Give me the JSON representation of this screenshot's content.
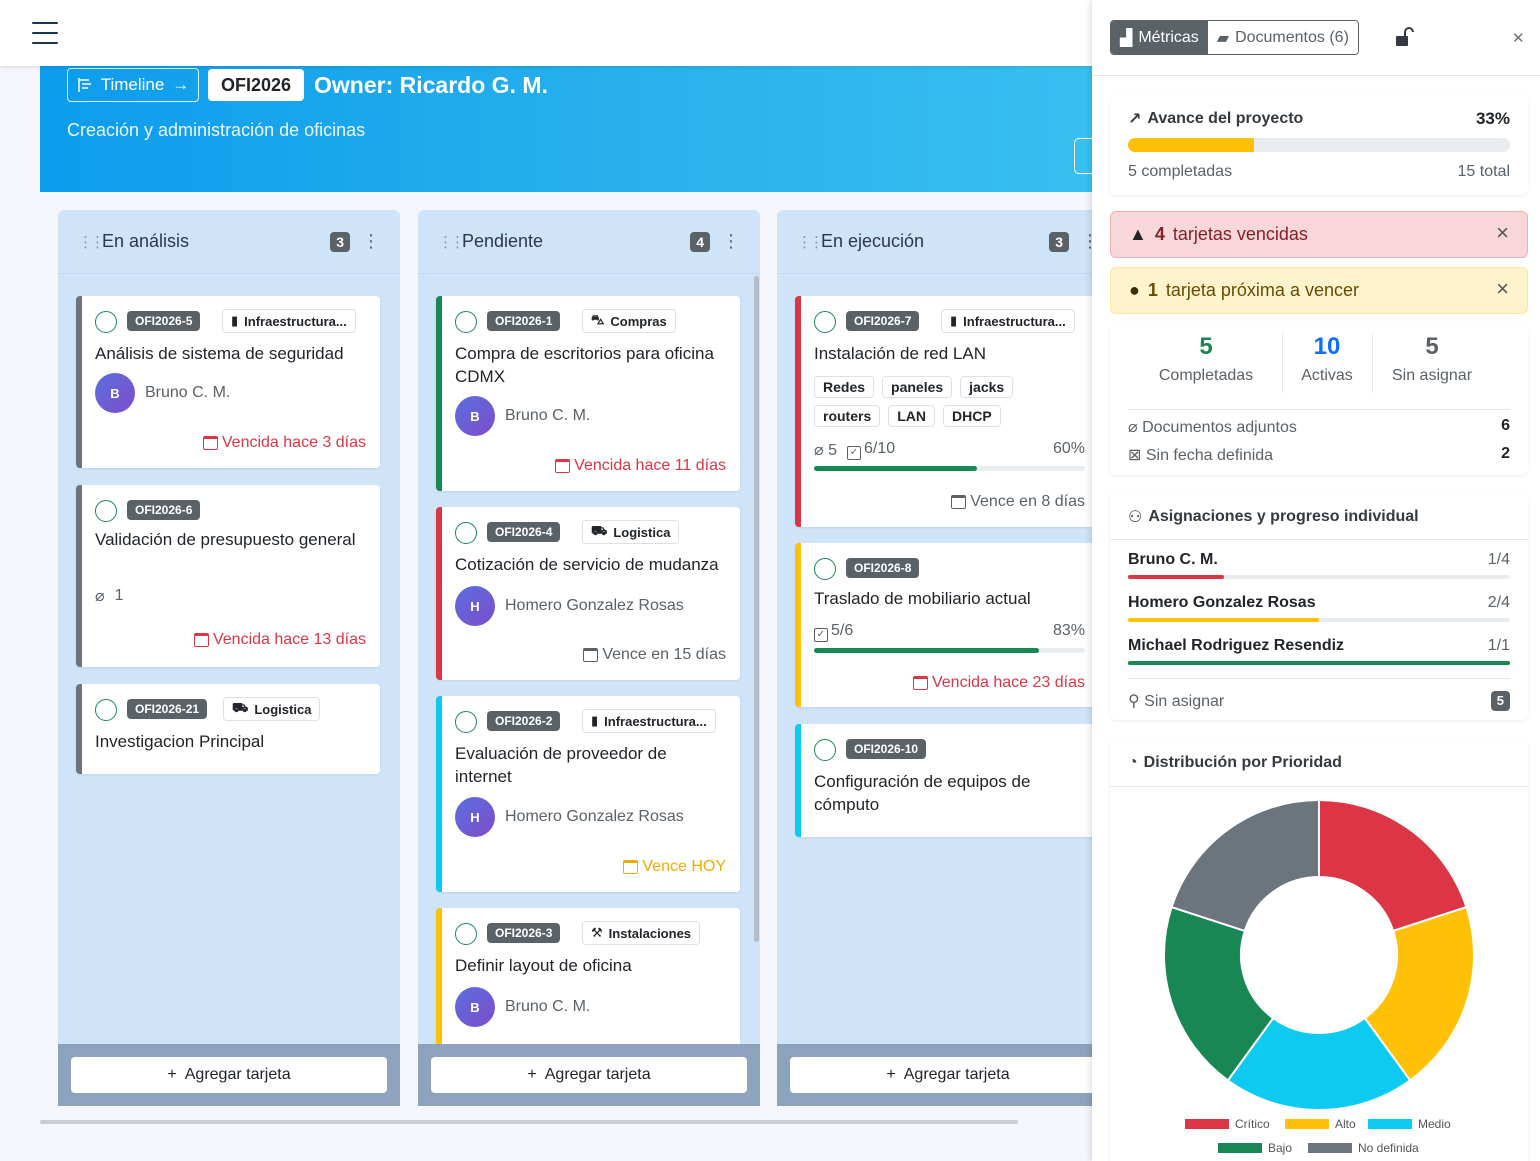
{
  "header": {
    "timeline_label": "Timeline",
    "project_code": "OFI2026",
    "owner": "Owner: Ricardo G. M.",
    "description": "Creación y administración de oficinas"
  },
  "add_card_label": "Agregar tarjeta",
  "columns": [
    {
      "title": "En análisis",
      "count": "3",
      "cards": [
        {
          "id": "OFI2026-5",
          "category": "Infraestructura...",
          "title": "Análisis de sistema de seguridad",
          "assignee": "Bruno C. M.",
          "initial": "B",
          "due": "Vencida hace 3 días"
        },
        {
          "id": "OFI2026-6",
          "title": "Validación de presupuesto general",
          "attachments": "1",
          "due": "Vencida hace 13 días"
        },
        {
          "id": "OFI2026-21",
          "category": "Logistica",
          "title": "Investigacion Principal"
        }
      ]
    },
    {
      "title": "Pendiente",
      "count": "4",
      "cards": [
        {
          "id": "OFI2026-1",
          "category": "Compras",
          "title": "Compra de escritorios para oficina CDMX",
          "assignee": "Bruno C. M.",
          "initial": "B",
          "due": "Vencida hace 11 días"
        },
        {
          "id": "OFI2026-4",
          "category": "Logistica",
          "title": "Cotización de servicio de mudanza",
          "assignee": "Homero Gonzalez Rosas",
          "initial": "H",
          "due": "Vence en 15 días"
        },
        {
          "id": "OFI2026-2",
          "category": "Infraestructura...",
          "title": "Evaluación de proveedor de internet",
          "assignee": "Homero Gonzalez Rosas",
          "initial": "H",
          "due": "Vence HOY"
        },
        {
          "id": "OFI2026-3",
          "category": "Instalaciones",
          "title": "Definir layout de oficina",
          "assignee": "Bruno C. M.",
          "initial": "B"
        }
      ]
    },
    {
      "title": "En ejecución",
      "count": "3",
      "cards": [
        {
          "id": "OFI2026-7",
          "category": "Infraestructura...",
          "title": "Instalación de red LAN",
          "tags": [
            "Redes",
            "paneles",
            "jacks",
            "routers",
            "LAN",
            "DHCP"
          ],
          "attachments": "5",
          "checklist": "6/10",
          "progress": 60,
          "progress_label": "60%",
          "due": "Vence en 8 días"
        },
        {
          "id": "OFI2026-8",
          "title": "Traslado de mobiliario actual",
          "checklist": "5/6",
          "progress": 83,
          "progress_label": "83%",
          "due": "Vencida hace 23 días"
        },
        {
          "id": "OFI2026-10",
          "title": "Configuración de equipos de cómputo"
        }
      ]
    }
  ],
  "panel": {
    "tab_metrics": "Métricas",
    "tab_documents": "Documentos (6)",
    "progress": {
      "title": "Avance del proyecto",
      "percent_label": "33%",
      "percent": 33,
      "completed": "5 completadas",
      "total": "15 total"
    },
    "alert_overdue_count": "4",
    "alert_overdue_text": "tarjetas vencidas",
    "alert_soon_count": "1",
    "alert_soon_text": "tarjeta próxima a vencer",
    "stats": [
      {
        "value": "5",
        "label": "Completadas",
        "color": "#198754"
      },
      {
        "value": "10",
        "label": "Activas",
        "color": "#0d6efd"
      },
      {
        "value": "5",
        "label": "Sin asignar",
        "color": "#5a6268"
      }
    ],
    "docs_label": "Documentos adjuntos",
    "docs_value": "6",
    "nodate_label": "Sin fecha definida",
    "nodate_value": "2",
    "assign_title": "Asignaciones y progreso individual",
    "people": [
      {
        "name": "Bruno C. M.",
        "fraction": "1/4",
        "progress": 25,
        "color": "#dc3545"
      },
      {
        "name": "Homero Gonzalez Rosas",
        "fraction": "2/4",
        "progress": 50,
        "color": "#ffc107"
      },
      {
        "name": "Michael Rodriguez Resendiz",
        "fraction": "1/1",
        "progress": 100,
        "color": "#198754"
      }
    ],
    "unassigned_label": "Sin asignar",
    "unassigned_count": "5",
    "priority_title": "Distribución por Prioridad"
  },
  "chart_data": {
    "type": "pie",
    "style": "doughnut",
    "title": "Distribución por Prioridad",
    "categories": [
      "Crítico",
      "Alto",
      "Medio",
      "Bajo",
      "No definida"
    ],
    "values": [
      3,
      3,
      3,
      3,
      3
    ],
    "colors": [
      "#dc3545",
      "#ffc107",
      "#0dcaf0",
      "#198754",
      "#6c757d"
    ],
    "legend": "bottom"
  }
}
